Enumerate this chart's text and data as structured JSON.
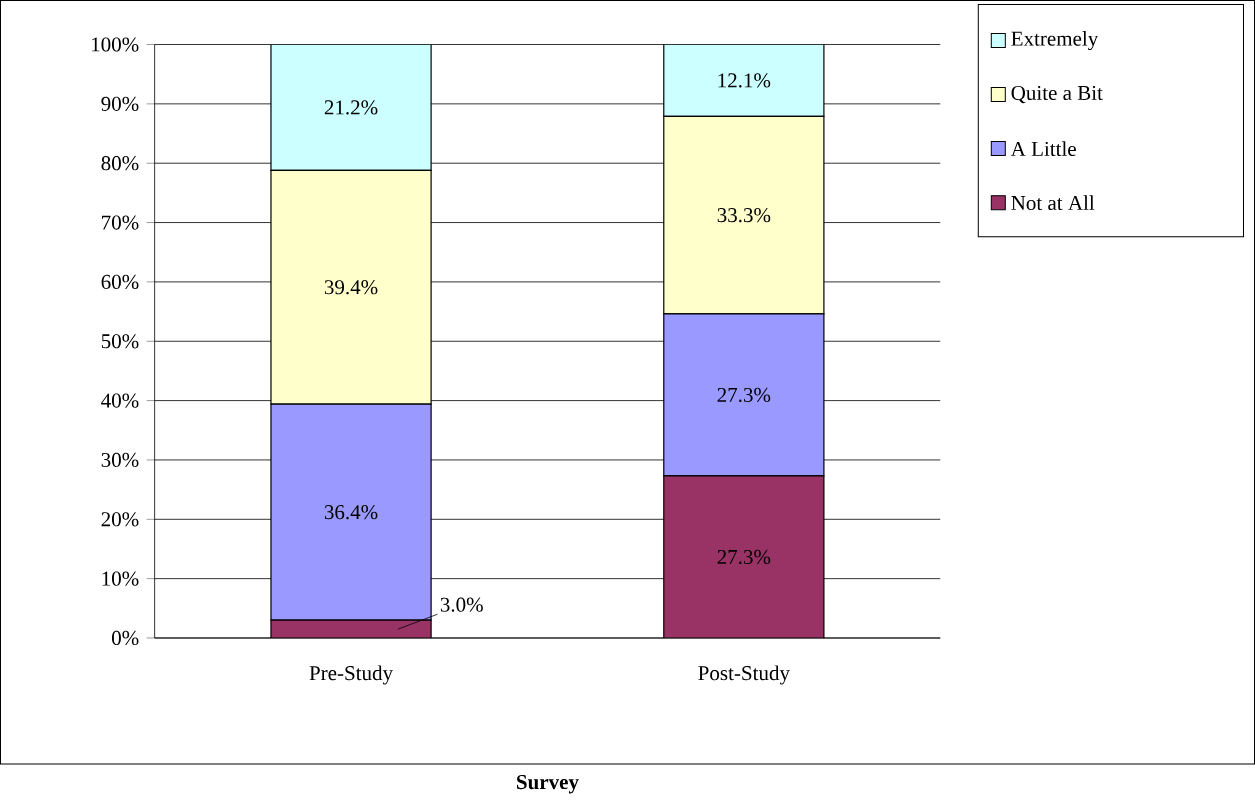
{
  "chart_data": {
    "type": "bar",
    "stacked": true,
    "categories": [
      "Pre-Study",
      "Post-Study"
    ],
    "series": [
      {
        "name": "Not at All",
        "color": "#993366",
        "values": [
          3.0,
          27.3
        ],
        "value_labels": [
          "3.0%",
          "27.3%"
        ]
      },
      {
        "name": "A Little",
        "color": "#9999ff",
        "values": [
          36.4,
          27.3
        ],
        "value_labels": [
          "36.4%",
          "27.3%"
        ]
      },
      {
        "name": "Quite a Bit",
        "color": "#ffffcc",
        "values": [
          39.4,
          33.3
        ],
        "value_labels": [
          "39.4%",
          "33.3%"
        ]
      },
      {
        "name": "Extremely",
        "color": "#ccffff",
        "values": [
          21.2,
          12.1
        ],
        "value_labels": [
          "21.2%",
          "12.1%"
        ]
      }
    ],
    "xlabel": "**Survey**",
    "ylim": [
      0,
      100
    ],
    "yticks": [
      {
        "value": 0,
        "label": "0%"
      },
      {
        "value": 10,
        "label": "10%"
      },
      {
        "value": 20,
        "label": "20%"
      },
      {
        "value": 30,
        "label": "30%"
      },
      {
        "value": 40,
        "label": "40%"
      },
      {
        "value": 50,
        "label": "50%"
      },
      {
        "value": 60,
        "label": "60%"
      },
      {
        "value": 70,
        "label": "70%"
      },
      {
        "value": 80,
        "label": "80%"
      },
      {
        "value": 90,
        "label": "90%"
      },
      {
        "value": 100,
        "label": "100%"
      }
    ],
    "grid": "y",
    "legend": "top right"
  }
}
